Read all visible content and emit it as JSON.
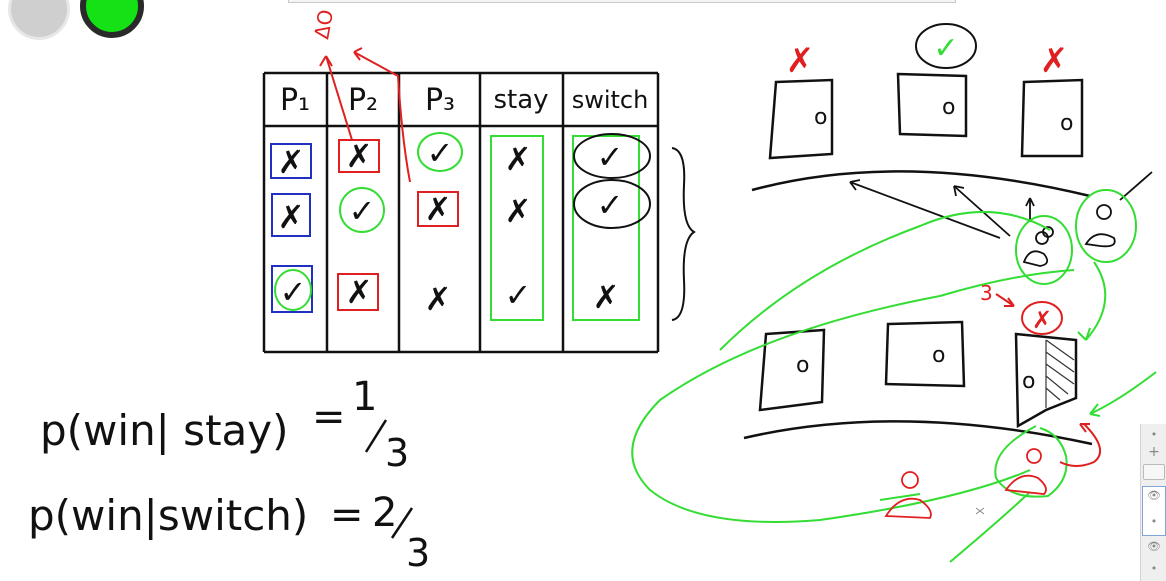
{
  "table": {
    "headers": [
      "P₁",
      "P₂",
      "P₃",
      "stay",
      "switch"
    ],
    "rows": [
      [
        "✗",
        "✗",
        "✓",
        "✗",
        "✓"
      ],
      [
        "✗",
        "✓",
        "✗",
        "✗",
        "✓"
      ],
      [
        "✓",
        "✗",
        "✗",
        "✓",
        "✗"
      ]
    ]
  },
  "annotations": {
    "top_red": "ΔO",
    "number_three": "3"
  },
  "equations": {
    "stay": {
      "lhs": "p(win| stay)",
      "eq": "=",
      "num": "1",
      "den": "3"
    },
    "switch": {
      "lhs": "p(win|switch)",
      "eq": "=",
      "num": "2",
      "den": "3"
    }
  },
  "doors": {
    "label": "o",
    "top_marks": [
      "✗",
      "✓",
      "✗"
    ]
  },
  "side_panel": {
    "icons": [
      "dot-icon",
      "plus-icon",
      "eye-icon",
      "eye-icon"
    ]
  },
  "colors": {
    "ink": "#111111",
    "red": "#e02020",
    "green": "#33dd33",
    "blue": "#2030c0",
    "window_green": "#14e214"
  }
}
